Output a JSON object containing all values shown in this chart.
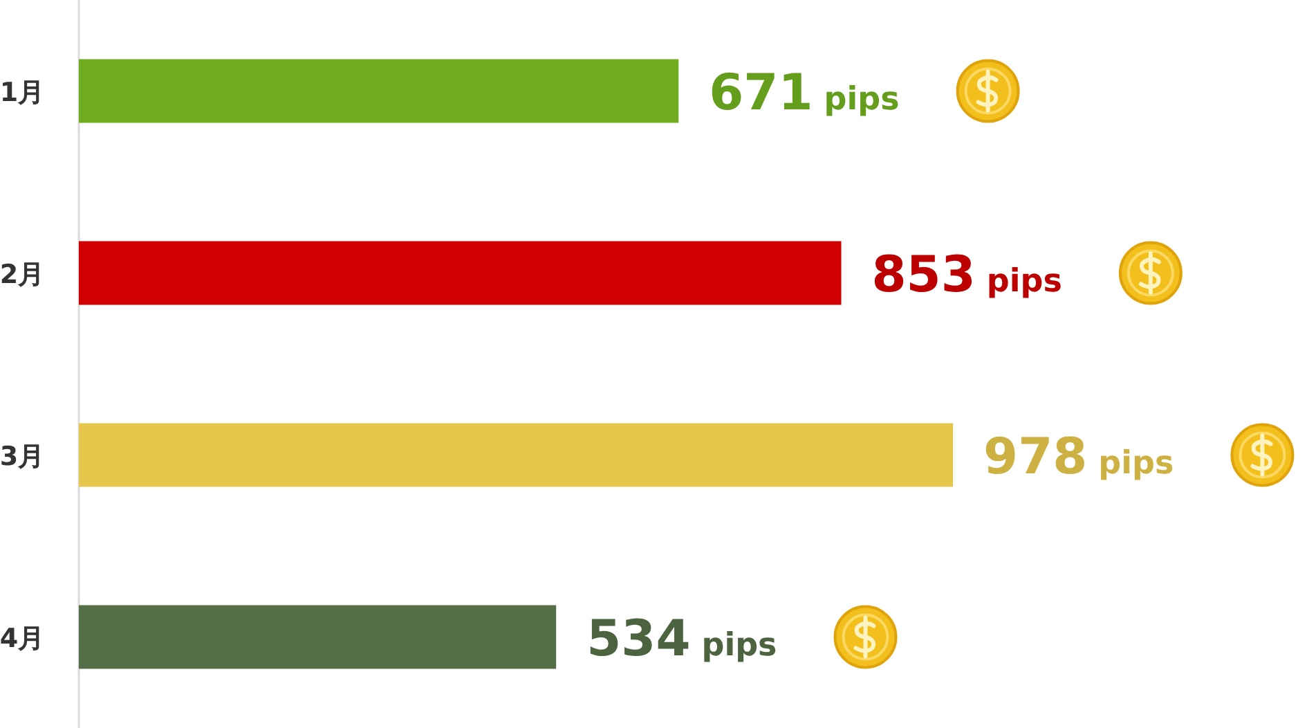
{
  "chart_data": {
    "type": "bar",
    "orientation": "horizontal",
    "categories": [
      "1月",
      "2月",
      "3月",
      "4月"
    ],
    "values": [
      671,
      853,
      978,
      534
    ],
    "colors": [
      "#70ae20",
      "#d10000",
      "#e5c54a",
      "#546e47"
    ],
    "value_labels": [
      "671 pips",
      "853 pips",
      "978 pips",
      "534 pips"
    ],
    "tick_labels": "y"
  }
}
